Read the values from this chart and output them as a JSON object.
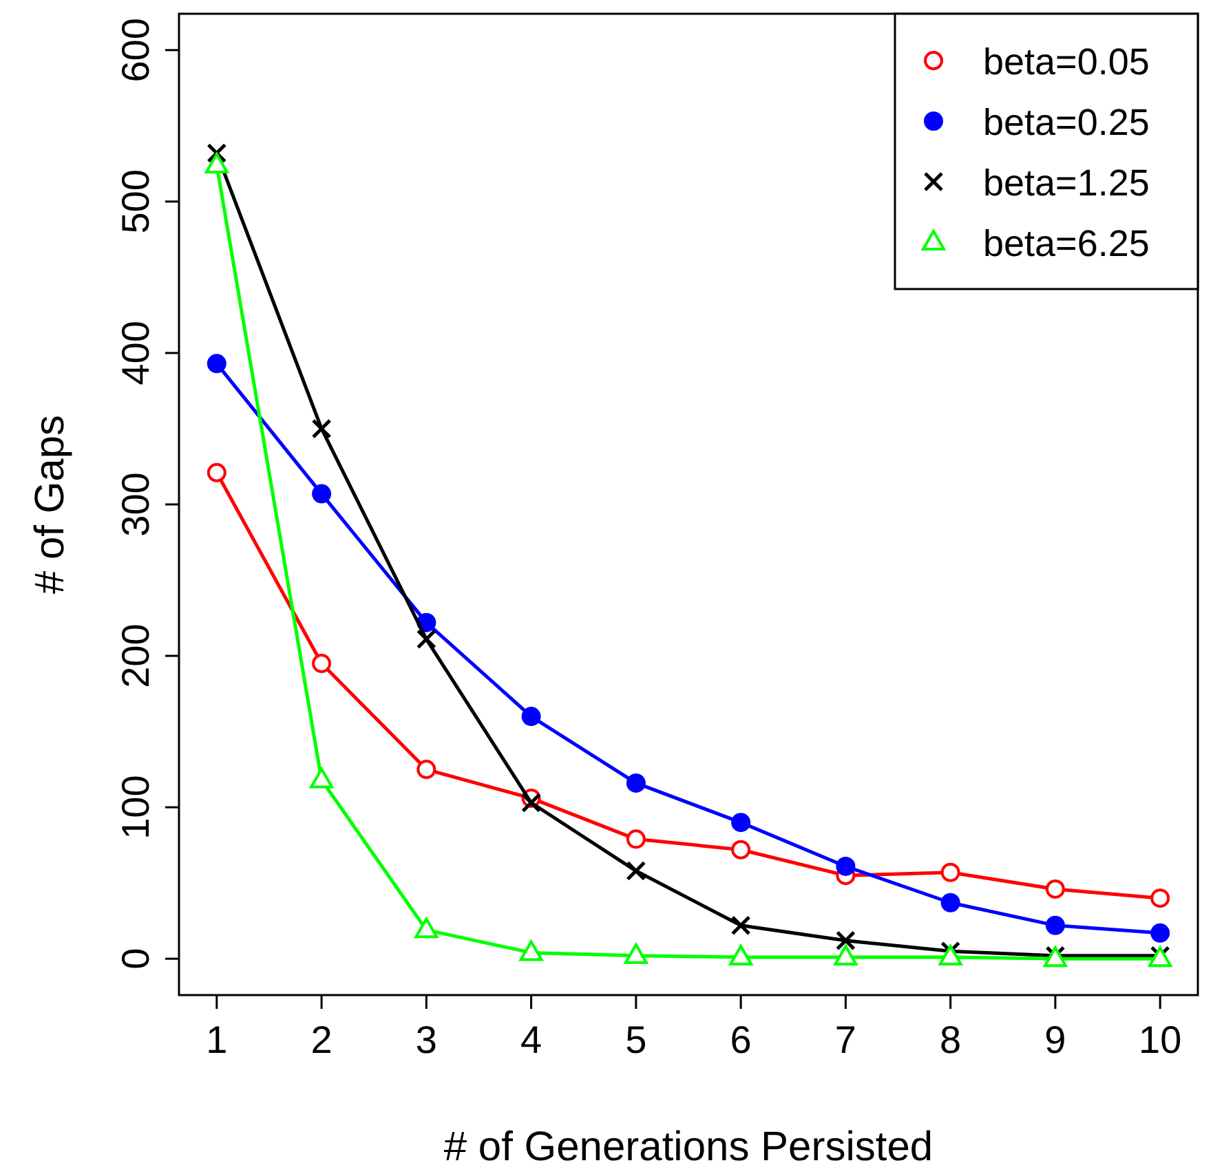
{
  "chart_data": {
    "type": "line",
    "xlabel": "# of Generations Persisted",
    "ylabel": "# of Gaps",
    "x": [
      1,
      2,
      3,
      4,
      5,
      6,
      7,
      8,
      9,
      10
    ],
    "xlim": [
      0.64,
      10.36
    ],
    "xticks": [
      1,
      2,
      3,
      4,
      5,
      6,
      7,
      8,
      9,
      10
    ],
    "ylim": [
      -24,
      624
    ],
    "yticks": [
      0,
      100,
      200,
      300,
      400,
      500,
      600
    ],
    "legend": "top right",
    "grid": false,
    "line_style": "solid",
    "series": [
      {
        "name": "beta=0.05",
        "color": "#ff0000",
        "marker": "circle",
        "values": [
          321,
          195,
          125,
          106,
          79,
          72,
          55,
          57,
          46,
          40
        ]
      },
      {
        "name": "beta=0.25",
        "color": "#0000ff",
        "marker": "circle",
        "values": [
          393,
          307,
          222,
          160,
          116,
          90,
          61,
          37,
          22,
          17
        ]
      },
      {
        "name": "beta=1.25",
        "color": "#000000",
        "marker": "cross",
        "values": [
          532,
          350,
          211,
          103,
          58,
          22,
          12,
          5,
          2,
          2
        ]
      },
      {
        "name": "beta=6.25",
        "color": "#00ff00",
        "marker": "triangle",
        "values": [
          524,
          118,
          19,
          4,
          2,
          1,
          1,
          1,
          0,
          0
        ]
      }
    ]
  }
}
